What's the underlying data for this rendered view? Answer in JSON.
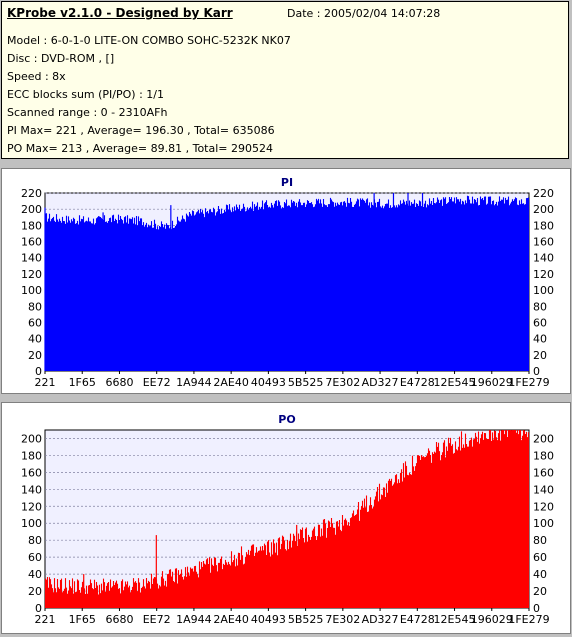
{
  "header": {
    "title": "KProbe v2.1.0 - Designed by Karr",
    "date": "Date : 2005/02/04 14:07:28",
    "lines": [
      "Model : 6-0-1-0 LITE-ON COMBO SOHC-5232K NK07",
      "Disc : DVD-ROM ,  []",
      "Speed : 8x",
      "ECC blocks sum (PI/PO) : 1/1",
      "Scanned range : 0 - 2310AFh",
      "PI Max= 221 , Average= 196.30 , Total= 635086",
      "PO Max= 213 , Average= 89.81 , Total= 290524"
    ]
  },
  "colors": {
    "pi": "#0000ff",
    "po": "#ff0000",
    "plot_bg": "#f0f0ff",
    "grid": "#8080a0"
  },
  "x_ticks": [
    "221",
    "1F65",
    "6680",
    "EE72",
    "1A944",
    "2AE40",
    "40493",
    "5B525",
    "7E302",
    "AD327",
    "E4728",
    "12E545",
    "196029",
    "1FE279"
  ],
  "chart_data": [
    {
      "type": "area",
      "title": "PI",
      "color": "#0000ff",
      "ylim": [
        0,
        220
      ],
      "yticks": [
        0,
        20,
        40,
        60,
        80,
        100,
        120,
        140,
        160,
        180,
        200,
        220
      ],
      "grid": true,
      "x": [
        0,
        5,
        10,
        15,
        20,
        25,
        30,
        35,
        40,
        45,
        50,
        55,
        60,
        65,
        70,
        75,
        80,
        85,
        90,
        95,
        100
      ],
      "values": [
        190,
        187,
        186,
        188,
        185,
        178,
        193,
        198,
        202,
        205,
        207,
        208,
        209,
        208,
        207,
        208,
        208,
        212,
        210,
        210,
        209
      ],
      "peaks": [
        [
          0,
          202
        ],
        [
          12,
          196
        ],
        [
          26,
          205
        ],
        [
          68,
          220
        ],
        [
          72,
          220
        ],
        [
          75,
          220
        ],
        [
          78,
          220
        ]
      ]
    },
    {
      "type": "area",
      "title": "PO",
      "color": "#ff0000",
      "ylim": [
        0,
        210
      ],
      "yticks": [
        0,
        20,
        40,
        60,
        80,
        100,
        120,
        140,
        160,
        180,
        200
      ],
      "grid": true,
      "x": [
        0,
        5,
        10,
        15,
        20,
        25,
        30,
        35,
        40,
        45,
        50,
        55,
        60,
        65,
        70,
        75,
        80,
        85,
        90,
        95,
        100
      ],
      "values": [
        28,
        26,
        25,
        24,
        28,
        35,
        43,
        52,
        60,
        68,
        78,
        88,
        98,
        115,
        140,
        165,
        182,
        195,
        205,
        210,
        208
      ],
      "peaks": [
        [
          23,
          86
        ],
        [
          8,
          40
        ],
        [
          52,
          98
        ],
        [
          54,
          95
        ]
      ]
    }
  ]
}
